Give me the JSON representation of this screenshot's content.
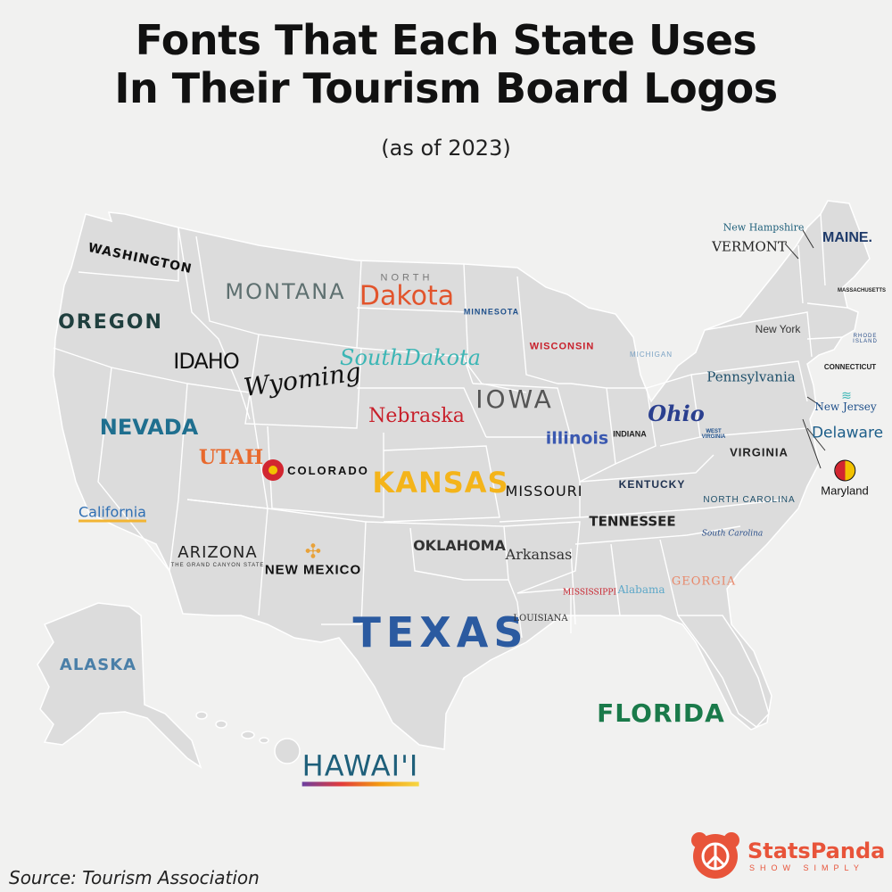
{
  "title_line1": "Fonts That Each State Uses",
  "title_line2": "In Their Tourism Board Logos",
  "subtitle": "(as of 2023)",
  "source": "Source: Tourism Association",
  "brand": {
    "name": "StatsPanda",
    "tagline": "SHOW SIMPLY",
    "color": "#e8543a"
  },
  "labels": {
    "washington": "WASHINGTON",
    "oregon": "OREGON",
    "california": "California",
    "nevada": "NEVADA",
    "idaho": "IDAHO",
    "montana": "MONTANA",
    "wyoming": "Wyoming",
    "utah": "UTAH",
    "arizona": "ARIZONA",
    "arizona_tag": "THE GRAND CANYON STATE",
    "colorado": "COLORADO",
    "new_mexico": "NEW MEXICO",
    "north": "NORTH",
    "dakota": "Dakota",
    "south_dakota": "SouthDakota",
    "nebraska": "Nebraska",
    "kansas": "KANSAS",
    "oklahoma": "OKLAHOMA",
    "texas": "TEXAS",
    "minnesota": "MINNESOTA",
    "iowa": "IOWA",
    "missouri": "MISSOURI",
    "arkansas": "Arkansas",
    "louisiana": "LOUISIANA",
    "wisconsin": "WISCONSIN",
    "illinois": "illinois",
    "michigan": "MICHIGAN",
    "indiana": "INDIANA",
    "ohio": "Ohio",
    "kentucky": "KENTUCKY",
    "tennessee": "TENNESSEE",
    "mississippi": "MISSISSIPPI",
    "alabama": "Alabama",
    "georgia": "GEORGIA",
    "florida": "FLORIDA",
    "south_carolina": "South Carolina",
    "north_carolina": "NORTH CAROLINA",
    "virginia": "VIRGINIA",
    "west_virginia": "WEST VIRGINIA",
    "pennsylvania": "Pennsylvania",
    "new_york": "New York",
    "vermont": "VERMONT",
    "new_hampshire": "New Hampshire",
    "maine": "MAINE.",
    "massachusetts": "MASSACHUSETTS",
    "rhode_island": "RHODE ISLAND",
    "connecticut": "CONNECTICUT",
    "new_jersey": "New Jersey",
    "delaware": "Delaware",
    "maryland": "Maryland",
    "alaska": "ALASKA",
    "hawaii": "HAWAI'I"
  }
}
